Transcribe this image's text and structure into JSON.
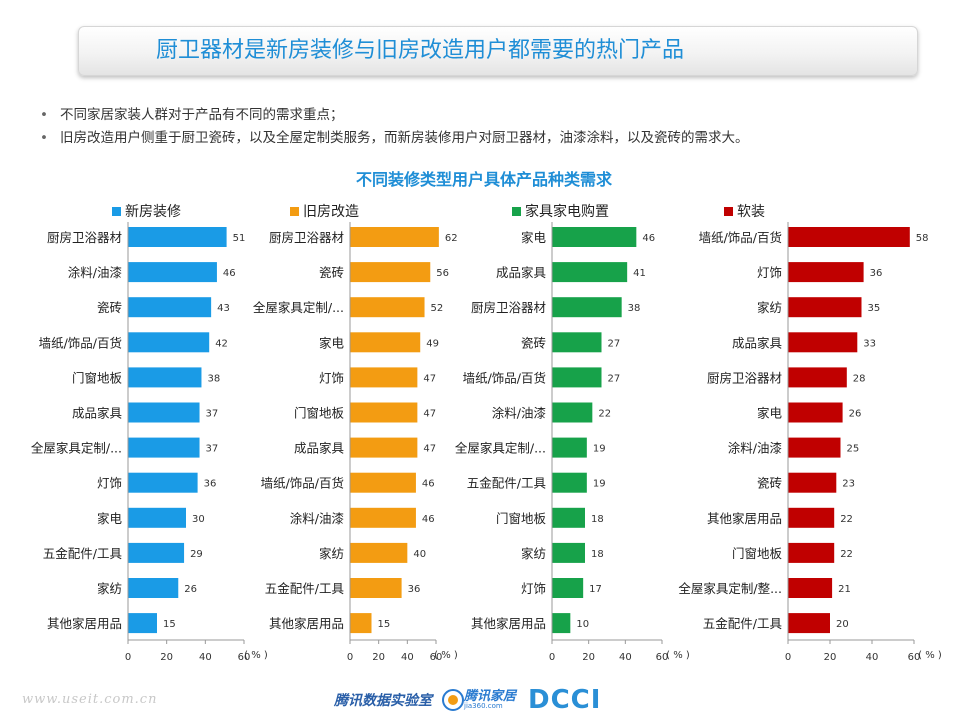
{
  "header": {
    "title": "厨卫器材是新房装修与旧房改造用户都需要的热门产品"
  },
  "bullets": [
    "不同家居家装人群对于产品有不同的需求重点；",
    "旧房改造用户侧重于厨卫瓷砖，以及全屋定制类服务，而新房装修用户对厨卫器材，油漆涂料，以及瓷砖的需求大。"
  ],
  "footer": {
    "url": "www.useit.com.cn",
    "logo_tencent": "腾讯数据实验室",
    "logo_home_main": "腾讯家居",
    "logo_home_sub": "jia360.com",
    "logo_dcci": "DCCI"
  },
  "chart_data": {
    "title": "不同装修类型用户具体产品种类需求",
    "unit_label": "( % )",
    "xlim": [
      0,
      60
    ],
    "ticks": [
      0,
      20,
      40,
      60
    ],
    "panels": [
      {
        "type": "bar",
        "orientation": "horizontal",
        "name": "新房装修",
        "color": "#1a9be6",
        "categories": [
          "厨房卫浴器材",
          "涂料/油漆",
          "瓷砖",
          "墙纸/饰品/百货",
          "门窗地板",
          "成品家具",
          "全屋家具定制/...",
          "灯饰",
          "家电",
          "五金配件/工具",
          "家纺",
          "其他家居用品"
        ],
        "values": [
          51,
          46,
          43,
          42,
          38,
          37,
          37,
          36,
          30,
          29,
          26,
          15
        ]
      },
      {
        "type": "bar",
        "orientation": "horizontal",
        "name": "旧房改造",
        "color": "#f39c12",
        "categories": [
          "厨房卫浴器材",
          "瓷砖",
          "全屋家具定制/...",
          "家电",
          "灯饰",
          "门窗地板",
          "成品家具",
          "墙纸/饰品/百货",
          "涂料/油漆",
          "家纺",
          "五金配件/工具",
          "其他家居用品"
        ],
        "values": [
          62,
          56,
          52,
          49,
          47,
          47,
          47,
          46,
          46,
          40,
          36,
          15
        ]
      },
      {
        "type": "bar",
        "orientation": "horizontal",
        "name": "家具家电购置",
        "color": "#17a24a",
        "categories": [
          "家电",
          "成品家具",
          "厨房卫浴器材",
          "瓷砖",
          "墙纸/饰品/百货",
          "涂料/油漆",
          "全屋家具定制/...",
          "五金配件/工具",
          "门窗地板",
          "家纺",
          "灯饰",
          "其他家居用品"
        ],
        "values": [
          46,
          41,
          38,
          27,
          27,
          22,
          19,
          19,
          18,
          18,
          17,
          10
        ]
      },
      {
        "type": "bar",
        "orientation": "horizontal",
        "name": "软装",
        "color": "#c00000",
        "categories": [
          "墙纸/饰品/百货",
          "灯饰",
          "家纺",
          "成品家具",
          "厨房卫浴器材",
          "家电",
          "涂料/油漆",
          "瓷砖",
          "其他家居用品",
          "门窗地板",
          "全屋家具定制/整...",
          "五金配件/工具"
        ],
        "values": [
          58,
          36,
          35,
          33,
          28,
          26,
          25,
          23,
          22,
          22,
          21,
          20
        ]
      }
    ]
  }
}
